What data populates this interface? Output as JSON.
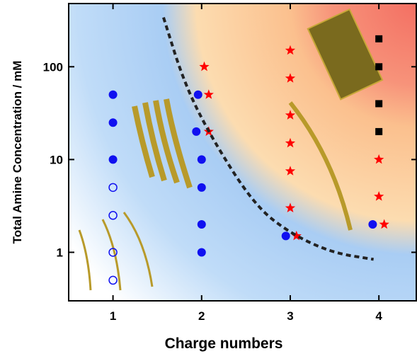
{
  "chart_data": {
    "type": "scatter",
    "xlabel": "Charge numbers",
    "ylabel": "Total Amine Concentration / mM",
    "xlim": [
      0.5,
      4.43
    ],
    "xticks": [
      1,
      2,
      3,
      4
    ],
    "ylim": [
      0.3,
      480
    ],
    "yticks": [
      1,
      10,
      100
    ],
    "ylog": true,
    "series": [
      {
        "marker": "circle",
        "color": "#1010f0",
        "x": [
          1,
          1,
          1,
          1.96,
          1.94,
          2,
          2,
          2,
          2,
          2.95,
          3.93
        ],
        "values": [
          50,
          25,
          10,
          50,
          20,
          10,
          5,
          2,
          1,
          1.5,
          2
        ]
      },
      {
        "marker": "open-circle",
        "color": "#1010f0",
        "x": [
          1,
          1,
          1,
          1
        ],
        "values": [
          5,
          2.5,
          1,
          0.5
        ]
      },
      {
        "marker": "star",
        "color": "#ff0000",
        "x": [
          2.03,
          2.08,
          2.08,
          3,
          3,
          3,
          3,
          3,
          3,
          3.07,
          4,
          4,
          4.06
        ],
        "values": [
          100,
          50,
          20,
          150,
          75,
          30,
          15,
          7.5,
          3,
          1.5,
          10,
          4,
          2
        ]
      },
      {
        "marker": "square",
        "color": "#000000",
        "x": [
          4,
          4,
          4,
          4
        ],
        "values": [
          200,
          100,
          40,
          20
        ]
      },
      {
        "marker": "dashed-line",
        "color": "#222222",
        "x": [
          1.57,
          1.81,
          2.13,
          2.6,
          3.0,
          3.47,
          3.94
        ],
        "values": [
          340,
          64,
          16,
          3.2,
          1.6,
          0.99,
          0.84
        ]
      }
    ]
  }
}
